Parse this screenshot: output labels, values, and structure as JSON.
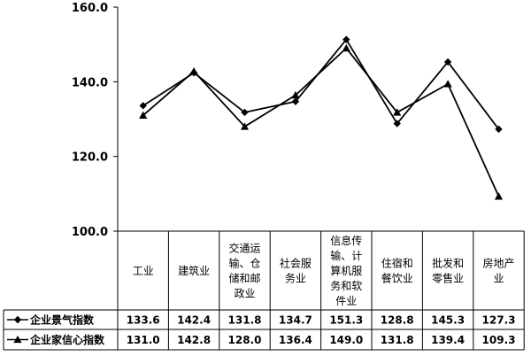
{
  "chart_data": {
    "type": "line",
    "categories": [
      [
        "工业"
      ],
      [
        "建筑业"
      ],
      [
        "交通运",
        "输、仓",
        "储和邮",
        "政业"
      ],
      [
        "社会服",
        "务业"
      ],
      [
        "信息传",
        "输、计",
        "算机服",
        "务和软",
        "件业"
      ],
      [
        "住宿和",
        "餐饮业"
      ],
      [
        "批发和",
        "零售业"
      ],
      [
        "房地产",
        "业"
      ]
    ],
    "series": [
      {
        "name": "企业景气指数",
        "values": [
          133.6,
          142.4,
          131.8,
          134.7,
          151.3,
          128.8,
          145.3,
          127.3
        ],
        "marker": "diamond",
        "value_labels": [
          "133.6",
          "142.4",
          "131.8",
          "134.7",
          "151.3",
          "128.8",
          "145.3",
          "127.3"
        ]
      },
      {
        "name": "企业家信心指数",
        "values": [
          131.0,
          142.8,
          128.0,
          136.4,
          149.0,
          131.8,
          139.4,
          109.3
        ],
        "marker": "triangle",
        "value_labels": [
          "131.0",
          "142.8",
          "128.0",
          "136.4",
          "149.0",
          "131.8",
          "139.4",
          "109.3"
        ]
      }
    ],
    "ylim": [
      100,
      160
    ],
    "yticks": [
      100,
      120,
      140,
      160
    ],
    "ytick_labels": [
      "100.0",
      "120.0",
      "140.0",
      "160.0"
    ],
    "grid": false,
    "data_table": true,
    "line_color": "#000000"
  }
}
